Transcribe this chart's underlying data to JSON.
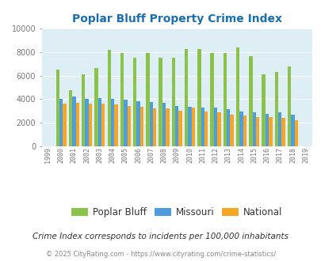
{
  "title": "Poplar Bluff Property Crime Index",
  "years": [
    1999,
    2000,
    2001,
    2002,
    2003,
    2004,
    2005,
    2006,
    2007,
    2008,
    2009,
    2010,
    2011,
    2012,
    2013,
    2014,
    2015,
    2016,
    2017,
    2018,
    2019
  ],
  "poplar_bluff": [
    null,
    6500,
    4750,
    6100,
    6650,
    8200,
    7950,
    7550,
    7950,
    7500,
    7550,
    8300,
    8250,
    7950,
    7950,
    8400,
    7650,
    6100,
    6300,
    6800,
    null
  ],
  "missouri": [
    null,
    4050,
    4250,
    4050,
    4100,
    4000,
    3950,
    3850,
    3750,
    3700,
    3450,
    3350,
    3300,
    3300,
    3150,
    2950,
    2850,
    2750,
    2850,
    2650,
    null
  ],
  "national": [
    null,
    3600,
    3700,
    3600,
    3650,
    3550,
    3400,
    3350,
    3250,
    3200,
    3050,
    3300,
    2950,
    2900,
    2700,
    2600,
    2500,
    2500,
    2400,
    2200,
    null
  ],
  "poplar_bluff_color": "#8bc34a",
  "missouri_color": "#4d9de0",
  "national_color": "#f5a623",
  "bg_color": "#ddeef5",
  "ylim": [
    0,
    10000
  ],
  "yticks": [
    0,
    2000,
    4000,
    6000,
    8000,
    10000
  ],
  "footnote1": "Crime Index corresponds to incidents per 100,000 inhabitants",
  "footnote2": "© 2025 CityRating.com - https://www.cityrating.com/crime-statistics/",
  "legend_labels": [
    "Poplar Bluff",
    "Missouri",
    "National"
  ],
  "title_color": "#1a6faf",
  "footnote1_color": "#333333",
  "footnote2_color": "#888888"
}
